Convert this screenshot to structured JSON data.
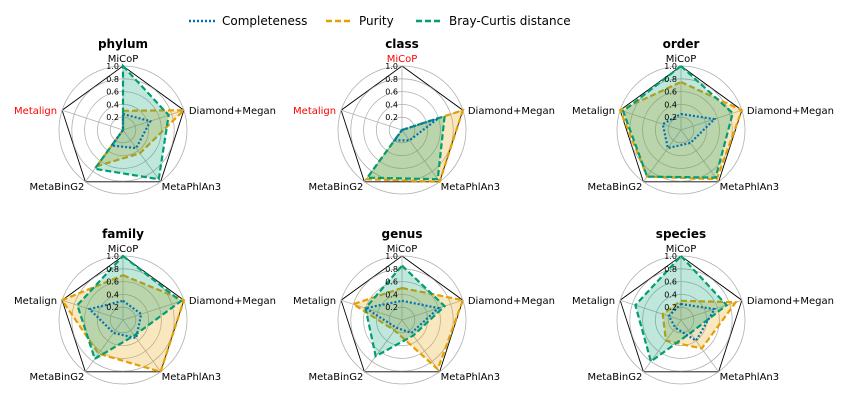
{
  "legend": {
    "placement": "top-center",
    "entries": [
      {
        "label": "Completeness",
        "color": "#0072B2",
        "dash": "dotted"
      },
      {
        "label": "Purity",
        "color": "#E69F00",
        "dash": "dashed"
      },
      {
        "label": "Bray-Curtis distance",
        "color": "#009E73",
        "dash": "dashed"
      }
    ]
  },
  "highlight_color": "#FF0000",
  "chart_data": [
    {
      "type": "radar",
      "title": "phylum",
      "axes": [
        "MiCoP",
        "Diamond+Megan",
        "MetaPhlAn3",
        "MetaBinG2",
        "Metalign"
      ],
      "highlighted_axes": [
        "Metalign"
      ],
      "rlim": [
        0,
        1
      ],
      "rticks": [
        "0.2",
        "0.4",
        "0.6",
        "0.8",
        "1.0"
      ],
      "grid": true,
      "series": [
        {
          "name": "Completeness",
          "values": [
            0.25,
            0.45,
            0.35,
            0.3,
            0.0
          ]
        },
        {
          "name": "Purity",
          "values": [
            0.3,
            1.0,
            0.45,
            0.7,
            0.0
          ]
        },
        {
          "name": "Bray-Curtis distance",
          "values": [
            1.0,
            0.75,
            0.95,
            0.75,
            0.0
          ]
        }
      ]
    },
    {
      "type": "radar",
      "title": "class",
      "axes": [
        "MiCoP",
        "Diamond+Megan",
        "MetaPhlAn3",
        "MetaBinG2",
        "Metalign"
      ],
      "highlighted_axes": [
        "MiCoP",
        "Metalign"
      ],
      "rlim": [
        0,
        1
      ],
      "rticks": [
        "0.2",
        "0.4",
        "0.6",
        "0.8",
        "1.0"
      ],
      "grid": true,
      "series": [
        {
          "name": "Completeness",
          "values": [
            0.0,
            0.6,
            0.2,
            0.2,
            0.0
          ]
        },
        {
          "name": "Purity",
          "values": [
            0.0,
            1.0,
            1.0,
            0.95,
            0.0
          ]
        },
        {
          "name": "Bray-Curtis distance",
          "values": [
            0.0,
            0.7,
            0.95,
            0.92,
            0.0
          ]
        }
      ]
    },
    {
      "type": "radar",
      "title": "order",
      "axes": [
        "MiCoP",
        "Diamond+Megan",
        "MetaPhlAn3",
        "MetaBinG2",
        "Metalign"
      ],
      "highlighted_axes": [],
      "rlim": [
        0,
        1
      ],
      "rticks": [
        "0.2",
        "0.4",
        "0.6",
        "0.8",
        "1.0"
      ],
      "grid": true,
      "series": [
        {
          "name": "Completeness",
          "values": [
            0.25,
            0.55,
            0.25,
            0.35,
            0.3
          ]
        },
        {
          "name": "Purity",
          "values": [
            0.75,
            1.0,
            0.95,
            0.9,
            1.0
          ]
        },
        {
          "name": "Bray-Curtis distance",
          "values": [
            1.0,
            0.85,
            0.92,
            0.9,
            0.95
          ]
        }
      ]
    },
    {
      "type": "radar",
      "title": "family",
      "axes": [
        "MiCoP",
        "Diamond+Megan",
        "MetaPhlAn3",
        "MetaBinG2",
        "Metalign"
      ],
      "highlighted_axes": [],
      "rlim": [
        0,
        1
      ],
      "rticks": [
        "0.2",
        "0.4",
        "0.6",
        "0.8",
        "1.0"
      ],
      "grid": true,
      "series": [
        {
          "name": "Completeness",
          "values": [
            0.3,
            0.3,
            0.35,
            0.25,
            0.55
          ]
        },
        {
          "name": "Purity",
          "values": [
            0.7,
            1.0,
            1.0,
            0.65,
            1.0
          ]
        },
        {
          "name": "Bray-Curtis distance",
          "values": [
            1.0,
            0.95,
            0.3,
            0.75,
            0.75
          ]
        }
      ]
    },
    {
      "type": "radar",
      "title": "genus",
      "axes": [
        "MiCoP",
        "Diamond+Megan",
        "MetaPhlAn3",
        "MetaBinG2",
        "Metalign"
      ],
      "highlighted_axes": [],
      "rlim": [
        0,
        1
      ],
      "rticks": [
        "0.2",
        "0.4",
        "0.6",
        "0.8",
        "1.0"
      ],
      "grid": true,
      "series": [
        {
          "name": "Completeness",
          "values": [
            0.3,
            0.6,
            0.25,
            0.15,
            0.6
          ]
        },
        {
          "name": "Purity",
          "values": [
            0.5,
            1.0,
            0.95,
            0.2,
            0.8
          ]
        },
        {
          "name": "Bray-Curtis distance",
          "values": [
            0.85,
            0.7,
            0.3,
            0.7,
            0.6
          ]
        }
      ]
    },
    {
      "type": "radar",
      "title": "species",
      "axes": [
        "MiCoP",
        "Diamond+Megan",
        "MetaPhlAn3",
        "MetaBinG2",
        "Metalign"
      ],
      "highlighted_axes": [],
      "rlim": [
        0,
        1
      ],
      "rticks": [
        "0.2",
        "0.4",
        "0.6",
        "0.8",
        "1.0"
      ],
      "grid": true,
      "series": [
        {
          "name": "Completeness",
          "values": [
            0.25,
            0.55,
            0.4,
            0.15,
            0.2
          ]
        },
        {
          "name": "Purity",
          "values": [
            0.3,
            0.9,
            0.55,
            0.4,
            0.3
          ]
        },
        {
          "name": "Bray-Curtis distance",
          "values": [
            1.0,
            0.75,
            0.25,
            0.8,
            0.75
          ]
        }
      ]
    }
  ]
}
